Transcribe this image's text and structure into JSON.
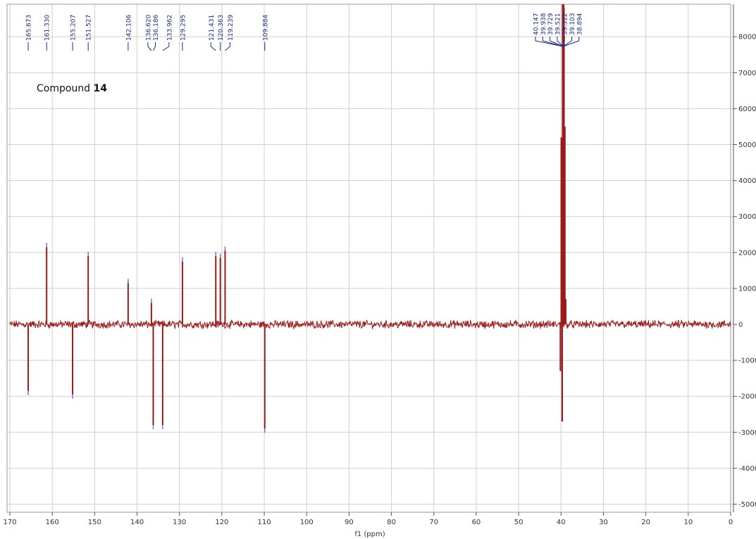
{
  "chart_data": {
    "type": "line",
    "title": "Compound 14",
    "title_prefix": "Compound ",
    "title_bold": "14",
    "xlabel": "f1 (ppm)",
    "ylabel": "",
    "xlim": [
      170,
      0
    ],
    "ylim": [
      -5200,
      8800
    ],
    "x_ticks": [
      170,
      160,
      150,
      140,
      130,
      120,
      110,
      100,
      90,
      80,
      70,
      60,
      50,
      40,
      30,
      20,
      10,
      0
    ],
    "x_tick_labels": [
      "170",
      "160",
      "150",
      "140",
      "130",
      "120",
      "110",
      "100",
      "90",
      "80",
      "70",
      "60",
      "50",
      "40",
      "30",
      "20",
      "10",
      "0"
    ],
    "y_ticks": [
      -5000,
      -4000,
      -3000,
      -2000,
      -1000,
      0,
      1000,
      2000,
      3000,
      4000,
      5000,
      6000,
      7000,
      8000
    ],
    "y_tick_labels": [
      "-5000",
      "-4000",
      "-3000",
      "-2000",
      "-1000",
      "0",
      "1000",
      "2000",
      "3000",
      "4000",
      "5000",
      "6000",
      "7000",
      "8000"
    ],
    "grid": true,
    "line_color": "#9b1b1b",
    "label_color": "#1a2a8a",
    "peaks": [
      {
        "ppm": 165.673,
        "label": "165.673",
        "intensity": -1850
      },
      {
        "ppm": 161.33,
        "label": "161.330",
        "intensity": 2150
      },
      {
        "ppm": 155.207,
        "label": "155.207",
        "intensity": -1950
      },
      {
        "ppm": 151.527,
        "label": "151.527",
        "intensity": 1900
      },
      {
        "ppm": 142.106,
        "label": "142.106",
        "intensity": 1150
      },
      {
        "ppm": 136.62,
        "label": "136.620",
        "intensity": 600
      },
      {
        "ppm": 136.186,
        "label": "136.186",
        "intensity": -2800
      },
      {
        "ppm": 133.962,
        "label": "133.962",
        "intensity": -2800
      },
      {
        "ppm": 129.295,
        "label": "129.295",
        "intensity": 1750
      },
      {
        "ppm": 121.431,
        "label": "121.431",
        "intensity": 1900
      },
      {
        "ppm": 120.363,
        "label": "120.363",
        "intensity": 1850
      },
      {
        "ppm": 119.239,
        "label": "119.239",
        "intensity": 2050
      },
      {
        "ppm": 109.884,
        "label": "109.884",
        "intensity": -2900
      }
    ],
    "solvent_peaks": [
      {
        "ppm": 40.147,
        "label": "40.147",
        "intensity": -1300
      },
      {
        "ppm": 39.938,
        "label": "39.938",
        "intensity": 5200
      },
      {
        "ppm": 39.729,
        "label": "39.729",
        "intensity": -2700
      },
      {
        "ppm": 39.521,
        "label": "39.521",
        "intensity": 8800
      },
      {
        "ppm": 39.312,
        "label": "39.312",
        "intensity": 8800
      },
      {
        "ppm": 39.103,
        "label": "39.103",
        "intensity": 5500
      },
      {
        "ppm": 38.894,
        "label": "38.894",
        "intensity": 700
      }
    ]
  }
}
